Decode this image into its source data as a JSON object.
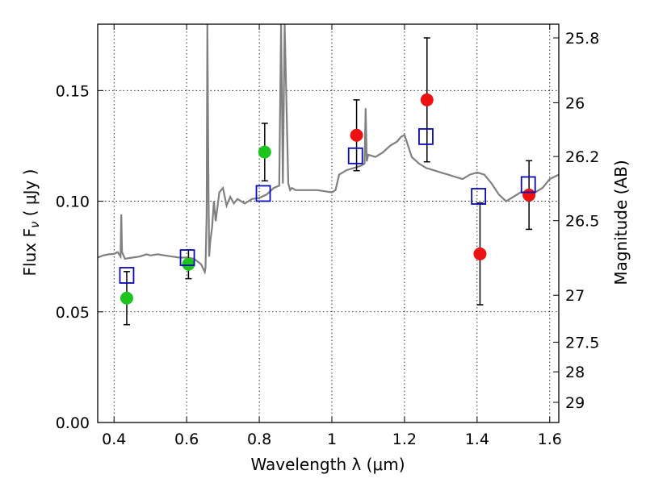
{
  "chart_data": {
    "type": "scatter",
    "xlabel": "Wavelength  λ (μm)",
    "ylabel": "Flux  F",
    "ylabel_sub": "ν",
    "ylabel_unit": "  ( μJy )",
    "y2label": "Magnitude (AB)",
    "xlim": [
      0.355,
      1.625
    ],
    "ylim": [
      0.0,
      0.18
    ],
    "x_ticks": [
      0.4,
      0.6,
      0.8,
      1.0,
      1.2,
      1.4,
      1.6
    ],
    "x_tick_labels": [
      "0.4",
      "0.6",
      "0.8",
      "1",
      "1.2",
      "1.4",
      "1.6"
    ],
    "y_ticks": [
      0.0,
      0.05,
      0.1,
      0.15
    ],
    "y_tick_labels": [
      "0.00",
      "0.05",
      "0.10",
      "0.15"
    ],
    "y2_ticks": [
      {
        "label": "25.8",
        "flux": 0.1738
      },
      {
        "label": "26",
        "flux": 0.1445
      },
      {
        "label": "26.2",
        "flux": 0.1202
      },
      {
        "label": "26.5",
        "flux": 0.0912
      },
      {
        "label": "27",
        "flux": 0.0575
      },
      {
        "label": "27.5",
        "flux": 0.0363
      },
      {
        "label": "28",
        "flux": 0.0229
      },
      {
        "label": "29",
        "flux": 0.0091
      }
    ],
    "grid": true,
    "colors": {
      "model": "#808080",
      "green": "#1ec41e",
      "red": "#ee1111",
      "model_box": "#0a0ab4",
      "errorbar": "#000000"
    },
    "series": [
      {
        "marker": "circle",
        "color": "green",
        "points": [
          {
            "x": 0.435,
            "y": 0.0562,
            "err": 0.012
          },
          {
            "x": 0.605,
            "y": 0.0715,
            "err": 0.0065
          },
          {
            "x": 0.815,
            "y": 0.1222,
            "err": 0.013
          }
        ]
      },
      {
        "marker": "circle",
        "color": "red",
        "points": [
          {
            "x": 1.068,
            "y": 0.1298,
            "err": 0.016
          },
          {
            "x": 1.262,
            "y": 0.1458,
            "err": 0.028
          },
          {
            "x": 1.408,
            "y": 0.0762,
            "err": 0.023
          },
          {
            "x": 1.543,
            "y": 0.1028,
            "err": 0.0155
          }
        ]
      },
      {
        "marker": "square",
        "color": "model_box",
        "points": [
          {
            "x": 0.435,
            "y": 0.0665
          },
          {
            "x": 0.602,
            "y": 0.0745
          },
          {
            "x": 0.811,
            "y": 0.1035
          },
          {
            "x": 1.065,
            "y": 0.1205
          },
          {
            "x": 1.259,
            "y": 0.1292
          },
          {
            "x": 1.404,
            "y": 0.1022
          },
          {
            "x": 1.541,
            "y": 0.1075
          }
        ]
      }
    ],
    "model_spectrum": {
      "x": [
        0.355,
        0.37,
        0.385,
        0.4,
        0.41,
        0.418,
        0.42,
        0.422,
        0.43,
        0.45,
        0.47,
        0.49,
        0.5,
        0.52,
        0.54,
        0.56,
        0.58,
        0.6,
        0.62,
        0.64,
        0.65,
        0.652,
        0.655,
        0.657,
        0.66,
        0.662,
        0.665,
        0.67,
        0.675,
        0.68,
        0.69,
        0.7,
        0.71,
        0.72,
        0.73,
        0.74,
        0.75,
        0.76,
        0.78,
        0.8,
        0.82,
        0.84,
        0.855,
        0.86,
        0.865,
        0.87,
        0.88,
        0.885,
        0.89,
        0.9,
        0.92,
        0.94,
        0.96,
        0.98,
        1.0,
        1.01,
        1.02,
        1.03,
        1.04,
        1.06,
        1.08,
        1.09,
        1.093,
        1.096,
        1.1,
        1.12,
        1.14,
        1.16,
        1.18,
        1.19,
        1.2,
        1.21,
        1.22,
        1.24,
        1.26,
        1.28,
        1.3,
        1.32,
        1.34,
        1.36,
        1.38,
        1.4,
        1.42,
        1.44,
        1.46,
        1.48,
        1.5,
        1.52,
        1.54,
        1.56,
        1.58,
        1.6,
        1.625
      ],
      "y": [
        0.0745,
        0.0755,
        0.076,
        0.0762,
        0.077,
        0.075,
        0.094,
        0.077,
        0.074,
        0.0745,
        0.075,
        0.076,
        0.0755,
        0.076,
        0.0755,
        0.075,
        0.0745,
        0.0745,
        0.074,
        0.0715,
        0.068,
        0.07,
        0.094,
        0.18,
        0.11,
        0.075,
        0.082,
        0.088,
        0.1,
        0.091,
        0.104,
        0.106,
        0.098,
        0.102,
        0.099,
        0.101,
        0.1,
        0.099,
        0.101,
        0.1015,
        0.103,
        0.106,
        0.107,
        0.18,
        0.108,
        0.18,
        0.108,
        0.105,
        0.106,
        0.105,
        0.105,
        0.105,
        0.105,
        0.1045,
        0.104,
        0.105,
        0.112,
        0.113,
        0.114,
        0.115,
        0.116,
        0.117,
        0.142,
        0.118,
        0.121,
        0.12,
        0.122,
        0.125,
        0.127,
        0.129,
        0.13,
        0.125,
        0.12,
        0.117,
        0.115,
        0.114,
        0.113,
        0.112,
        0.111,
        0.11,
        0.112,
        0.113,
        0.112,
        0.108,
        0.103,
        0.1,
        0.102,
        0.104,
        0.103,
        0.104,
        0.106,
        0.11,
        0.112
      ]
    }
  }
}
